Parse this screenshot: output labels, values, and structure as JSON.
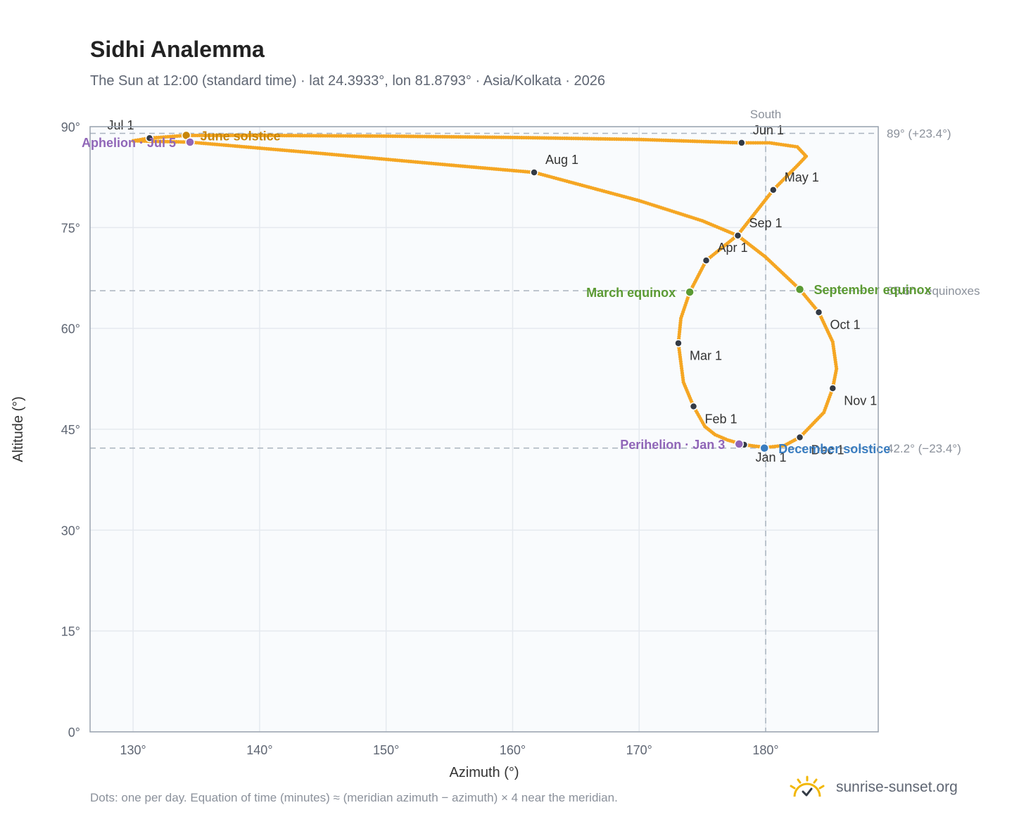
{
  "title": "Sidhi Analemma",
  "subtitle": "The Sun at 12:00 (standard time) · lat 24.3933°, lon 81.8793° · Asia/Kolkata · 2026",
  "footnote": "Dots: one per day. Equation of time (minutes) ≈ (meridian azimuth − azimuth) × 4 near the meridian.",
  "brand": {
    "name": "sunrise-sunset.org",
    "icon": "sun-logo-icon"
  },
  "colors": {
    "path": "#f5a623",
    "month_marker": "#333a45",
    "equinox": "#5b9a33",
    "solstice_june": "#c8860a",
    "solstice_december": "#3a7dc0",
    "apsis": "#9066b8",
    "reference_line": "#aab4bf",
    "grid": "#e5e9ef",
    "plot_bg": "#f9fbfd",
    "frame": "#9aa3af"
  },
  "chart_data": {
    "type": "scatter",
    "xlabel": "Azimuth (°)",
    "ylabel": "Altitude (°)",
    "xlim": [
      126.6,
      188.9
    ],
    "ylim": [
      0,
      90
    ],
    "x_ticks": [
      {
        "value": 130,
        "label": "130°"
      },
      {
        "value": 140,
        "label": "140°"
      },
      {
        "value": 150,
        "label": "150°"
      },
      {
        "value": 160,
        "label": "160°"
      },
      {
        "value": 170,
        "label": "170°"
      },
      {
        "value": 180,
        "label": "180°"
      }
    ],
    "y_ticks": [
      {
        "value": 0,
        "label": "0°"
      },
      {
        "value": 15,
        "label": "15°"
      },
      {
        "value": 30,
        "label": "30°"
      },
      {
        "value": 45,
        "label": "45°"
      },
      {
        "value": 60,
        "label": "60°"
      },
      {
        "value": 75,
        "label": "75°"
      },
      {
        "value": 90,
        "label": "90°"
      }
    ],
    "grid": true,
    "meridian": {
      "azimuth": 180,
      "label": "South"
    },
    "reference_lines": [
      {
        "altitude": 89.0,
        "label": "89° (+23.4°)"
      },
      {
        "altitude": 65.6,
        "label": "65.6° · equinoxes"
      },
      {
        "altitude": 42.2,
        "label": "42.2° (−23.4°)"
      }
    ],
    "daily_path": [
      [
        180.0,
        42.3
      ],
      [
        179.1,
        42.5
      ],
      [
        178.3,
        42.7
      ],
      [
        177.0,
        43.4
      ],
      [
        176.0,
        44.2
      ],
      [
        175.2,
        45.4
      ],
      [
        174.3,
        48.4
      ],
      [
        173.5,
        52.0
      ],
      [
        173.1,
        57.8
      ],
      [
        173.3,
        61.5
      ],
      [
        174.0,
        65.4
      ],
      [
        175.3,
        70.1
      ],
      [
        177.8,
        73.9
      ],
      [
        180.6,
        80.6
      ],
      [
        182.6,
        84.4
      ],
      [
        183.2,
        85.6
      ],
      [
        182.5,
        87.0
      ],
      [
        180.3,
        87.6
      ],
      [
        178.1,
        87.6
      ],
      [
        170.0,
        88.1
      ],
      [
        160.0,
        88.4
      ],
      [
        150.0,
        88.6
      ],
      [
        140.0,
        88.7
      ],
      [
        134.2,
        88.7
      ],
      [
        131.3,
        88.3
      ],
      [
        130.0,
        87.9
      ],
      [
        134.5,
        87.7
      ],
      [
        145.0,
        86.0
      ],
      [
        155.0,
        84.3
      ],
      [
        161.7,
        83.2
      ],
      [
        170.0,
        79.0
      ],
      [
        175.0,
        76.0
      ],
      [
        177.8,
        73.8
      ],
      [
        180.0,
        70.6
      ],
      [
        182.7,
        65.8
      ],
      [
        184.2,
        62.4
      ],
      [
        185.3,
        58.0
      ],
      [
        185.6,
        54.0
      ],
      [
        185.3,
        51.1
      ],
      [
        184.6,
        47.5
      ],
      [
        182.7,
        43.8
      ],
      [
        181.5,
        42.6
      ],
      [
        180.0,
        42.3
      ]
    ],
    "month_markers": [
      {
        "label": "Jan 1",
        "azimuth": 178.3,
        "altitude": 42.7
      },
      {
        "label": "Feb 1",
        "azimuth": 174.3,
        "altitude": 48.4
      },
      {
        "label": "Mar 1",
        "azimuth": 173.1,
        "altitude": 57.8
      },
      {
        "label": "Apr 1",
        "azimuth": 175.3,
        "altitude": 70.1
      },
      {
        "label": "May 1",
        "azimuth": 180.6,
        "altitude": 80.6
      },
      {
        "label": "Jun 1",
        "azimuth": 178.1,
        "altitude": 87.6
      },
      {
        "label": "Jul 1",
        "azimuth": 131.3,
        "altitude": 88.3
      },
      {
        "label": "Aug 1",
        "azimuth": 161.7,
        "altitude": 83.2
      },
      {
        "label": "Sep 1",
        "azimuth": 177.8,
        "altitude": 73.8
      },
      {
        "label": "Oct 1",
        "azimuth": 184.2,
        "altitude": 62.4
      },
      {
        "label": "Nov 1",
        "azimuth": 185.3,
        "altitude": 51.1
      },
      {
        "label": "Dec 1",
        "azimuth": 182.7,
        "altitude": 43.8
      }
    ],
    "events": [
      {
        "label": "June solstice",
        "azimuth": 134.2,
        "altitude": 88.7,
        "color": "#c8860a",
        "anchor": "start"
      },
      {
        "label": "Aphelion · Jul 5",
        "azimuth": 134.5,
        "altitude": 87.7,
        "color": "#9066b8",
        "anchor": "end"
      },
      {
        "label": "March equinox",
        "azimuth": 174.0,
        "altitude": 65.4,
        "color": "#5b9a33",
        "anchor": "end"
      },
      {
        "label": "September equinox",
        "azimuth": 182.7,
        "altitude": 65.8,
        "color": "#5b9a33",
        "anchor": "start"
      },
      {
        "label": "Perihelion · Jan 3",
        "azimuth": 177.9,
        "altitude": 42.8,
        "color": "#9066b8",
        "anchor": "end"
      },
      {
        "label": "December solstice",
        "azimuth": 179.9,
        "altitude": 42.2,
        "color": "#3a7dc0",
        "anchor": "start"
      }
    ]
  }
}
